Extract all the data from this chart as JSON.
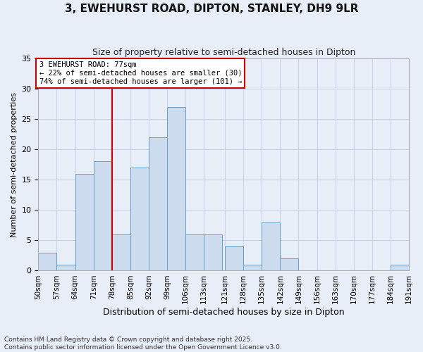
{
  "title": "3, EWEHURST ROAD, DIPTON, STANLEY, DH9 9LR",
  "subtitle": "Size of property relative to semi-detached houses in Dipton",
  "xlabel": "Distribution of semi-detached houses by size in Dipton",
  "ylabel": "Number of semi-detached properties",
  "bins": [
    50,
    57,
    64,
    71,
    78,
    85,
    92,
    99,
    106,
    113,
    121,
    128,
    135,
    142,
    149,
    156,
    163,
    170,
    177,
    184,
    191
  ],
  "bin_labels": [
    "50sqm",
    "57sqm",
    "64sqm",
    "71sqm",
    "78sqm",
    "85sqm",
    "92sqm",
    "99sqm",
    "106sqm",
    "113sqm",
    "121sqm",
    "128sqm",
    "135sqm",
    "142sqm",
    "149sqm",
    "156sqm",
    "163sqm",
    "170sqm",
    "177sqm",
    "184sqm",
    "191sqm"
  ],
  "counts": [
    3,
    1,
    16,
    18,
    6,
    17,
    22,
    27,
    6,
    6,
    4,
    1,
    8,
    2,
    0,
    0,
    0,
    0,
    0,
    1
  ],
  "bar_color": "#ccdcee",
  "bar_edgecolor": "#6a9fc0",
  "vline_x": 78,
  "vline_color": "#cc0000",
  "annotation_text": "3 EWEHURST ROAD: 77sqm\n← 22% of semi-detached houses are smaller (30)\n74% of semi-detached houses are larger (101) →",
  "annotation_box_edgecolor": "#cc0000",
  "ylim": [
    0,
    35
  ],
  "yticks": [
    0,
    5,
    10,
    15,
    20,
    25,
    30,
    35
  ],
  "grid_color": "#c8d4e8",
  "bg_color": "#e8eef8",
  "fig_color": "#e8eef8",
  "footnote": "Contains HM Land Registry data © Crown copyright and database right 2025.\nContains public sector information licensed under the Open Government Licence v3.0."
}
